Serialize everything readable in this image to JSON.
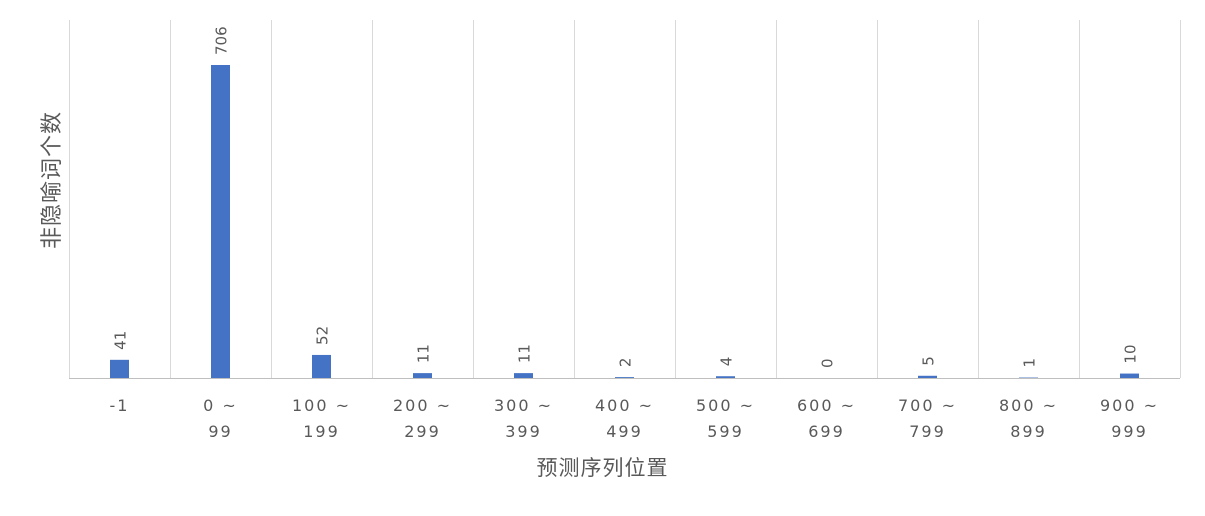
{
  "chart_data": {
    "type": "bar",
    "title": "",
    "xlabel": "预测序列位置",
    "ylabel": "非隐喻词个数",
    "categories": [
      [
        "-1"
      ],
      [
        "0 ~",
        "99"
      ],
      [
        "100 ~",
        "199"
      ],
      [
        "200 ~",
        "299"
      ],
      [
        "300 ~",
        "399"
      ],
      [
        "400 ~",
        "499"
      ],
      [
        "500 ~",
        "599"
      ],
      [
        "600 ~",
        "699"
      ],
      [
        "700 ~",
        "799"
      ],
      [
        "800 ~",
        "899"
      ],
      [
        "900 ~",
        "999"
      ]
    ],
    "values": [
      41,
      706,
      52,
      11,
      11,
      2,
      4,
      0,
      5,
      1,
      10
    ],
    "ylim": [
      0,
      800
    ],
    "grid": "vertical",
    "data_labels": true,
    "colors": {
      "bar": "#4472C4",
      "grid": "#D9D9D9",
      "axis": "#BFBFBF",
      "text": "#595959"
    }
  }
}
